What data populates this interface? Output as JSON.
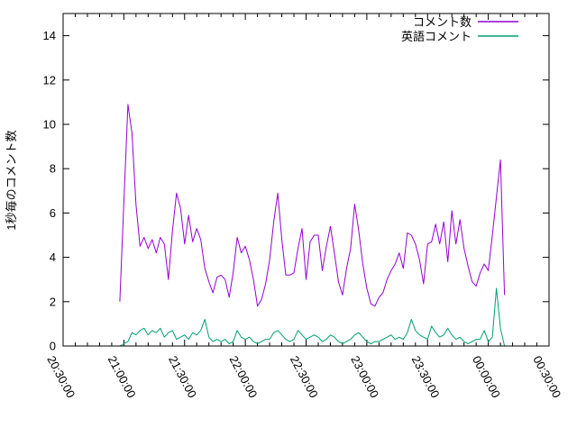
{
  "figure": {
    "background": "#ffffff",
    "border_color": "#000000",
    "text_color": "#000000"
  },
  "chart_data": {
    "type": "line",
    "title": "",
    "xlabel": "",
    "ylabel": "1秒毎のコメント数",
    "grid": false,
    "legend_position": "inside-top-right",
    "ylim": [
      0,
      15
    ],
    "xlim": [
      "20:30:00",
      "00:30:00"
    ],
    "x_tick_labels": [
      "20:30:00",
      "21:00:00",
      "21:30:00",
      "22:00:00",
      "22:30:00",
      "23:00:00",
      "23:30:00",
      "00:00:00",
      "00:30:00"
    ],
    "x_major_tick_minutes": 30,
    "x_minor_tick_minutes": 6,
    "y_tick_labels": [
      "0",
      "2",
      "4",
      "6",
      "8",
      "10",
      "12",
      "14"
    ],
    "y_tick_values": [
      0,
      2,
      4,
      6,
      8,
      10,
      12,
      14
    ],
    "x": [
      "20:58",
      "21:00",
      "21:02",
      "21:04",
      "21:06",
      "21:08",
      "21:10",
      "21:12",
      "21:14",
      "21:16",
      "21:18",
      "21:20",
      "21:22",
      "21:24",
      "21:26",
      "21:28",
      "21:30",
      "21:32",
      "21:34",
      "21:36",
      "21:38",
      "21:40",
      "21:42",
      "21:44",
      "21:46",
      "21:48",
      "21:50",
      "21:52",
      "21:54",
      "21:56",
      "21:58",
      "22:00",
      "22:02",
      "22:04",
      "22:06",
      "22:08",
      "22:10",
      "22:12",
      "22:14",
      "22:16",
      "22:18",
      "22:20",
      "22:22",
      "22:24",
      "22:26",
      "22:28",
      "22:30",
      "22:32",
      "22:34",
      "22:36",
      "22:38",
      "22:40",
      "22:42",
      "22:44",
      "22:46",
      "22:48",
      "22:50",
      "22:52",
      "22:54",
      "22:56",
      "22:58",
      "23:00",
      "23:02",
      "23:04",
      "23:06",
      "23:08",
      "23:10",
      "23:12",
      "23:14",
      "23:16",
      "23:18",
      "23:20",
      "23:22",
      "23:24",
      "23:26",
      "23:28",
      "23:30",
      "23:32",
      "23:34",
      "23:36",
      "23:38",
      "23:40",
      "23:42",
      "23:44",
      "23:46",
      "23:48",
      "23:50",
      "23:52",
      "23:54",
      "23:56",
      "23:58",
      "00:00",
      "00:02",
      "00:04",
      "00:06",
      "00:08"
    ],
    "series": [
      {
        "name": "コメント数",
        "color": "#9400d3",
        "values": [
          2.0,
          6.5,
          10.9,
          9.6,
          6.4,
          4.5,
          4.9,
          4.4,
          4.8,
          4.2,
          4.9,
          4.6,
          3.0,
          5.2,
          6.9,
          6.2,
          4.6,
          5.9,
          4.7,
          5.3,
          4.8,
          3.5,
          2.9,
          2.4,
          3.1,
          3.2,
          3.0,
          2.2,
          3.3,
          4.9,
          4.2,
          4.5,
          3.9,
          3.0,
          1.8,
          2.1,
          2.8,
          3.9,
          5.6,
          6.9,
          4.8,
          3.2,
          3.2,
          3.3,
          4.4,
          5.3,
          3.0,
          4.7,
          5.0,
          5.0,
          3.4,
          4.5,
          5.4,
          4.2,
          2.9,
          2.3,
          3.5,
          4.4,
          6.4,
          5.2,
          3.7,
          2.6,
          1.9,
          1.8,
          2.2,
          2.4,
          3.0,
          3.4,
          3.7,
          4.2,
          3.5,
          5.1,
          5.0,
          4.6,
          3.9,
          2.8,
          4.6,
          4.7,
          5.5,
          4.6,
          5.6,
          3.8,
          6.1,
          4.6,
          5.7,
          4.4,
          3.6,
          2.9,
          2.7,
          3.3,
          3.7,
          3.4,
          5.0,
          6.7,
          8.4,
          2.3
        ]
      },
      {
        "name": "英語コメント",
        "color": "#009e73",
        "values": [
          0.0,
          0.1,
          0.2,
          0.6,
          0.5,
          0.7,
          0.8,
          0.5,
          0.7,
          0.6,
          0.8,
          0.4,
          0.6,
          0.7,
          0.3,
          0.4,
          0.5,
          0.3,
          0.6,
          0.5,
          0.7,
          1.2,
          0.4,
          0.2,
          0.3,
          0.2,
          0.3,
          0.1,
          0.2,
          0.7,
          0.4,
          0.3,
          0.4,
          0.2,
          0.1,
          0.2,
          0.3,
          0.3,
          0.6,
          0.7,
          0.5,
          0.3,
          0.2,
          0.3,
          0.7,
          0.5,
          0.3,
          0.4,
          0.5,
          0.4,
          0.2,
          0.3,
          0.5,
          0.4,
          0.2,
          0.1,
          0.2,
          0.3,
          0.5,
          0.6,
          0.4,
          0.2,
          0.1,
          0.2,
          0.2,
          0.3,
          0.4,
          0.5,
          0.3,
          0.4,
          0.3,
          0.6,
          1.2,
          0.7,
          0.5,
          0.4,
          0.3,
          0.9,
          0.6,
          0.4,
          0.5,
          0.8,
          0.5,
          0.3,
          0.4,
          0.2,
          0.1,
          0.2,
          0.3,
          0.3,
          0.7,
          0.2,
          0.4,
          2.6,
          0.8,
          0.0
        ]
      }
    ]
  }
}
